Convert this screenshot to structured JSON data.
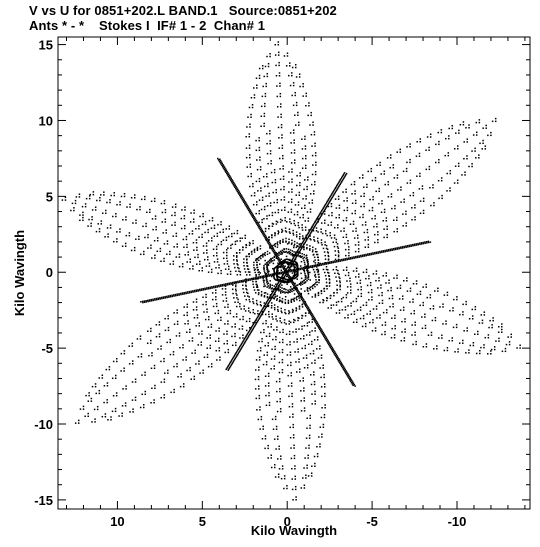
{
  "header": {
    "line1": "V vs U for 0851+202.L BAND.1   Source:0851+202",
    "line2": "Ants * - *    Stokes I  IF# 1 - 2  Chan# 1"
  },
  "chart_data": {
    "type": "scatter",
    "title": "V vs U for 0851+202.L BAND.1   Source:0851+202",
    "subtitle": "Ants * - *    Stokes I  IF# 1 - 2  Chan# 1",
    "xlabel": "Kilo Wavingth",
    "ylabel": "Kilo Wavingth",
    "xlim": [
      13.5,
      -14.3
    ],
    "ylim": [
      -15.6,
      15.5
    ],
    "x_inverted": true,
    "x_ticks": [
      10,
      5,
      0,
      -5,
      -10
    ],
    "x_tick_labels": [
      "10",
      "5",
      "0",
      "-5",
      "-10"
    ],
    "y_ticks": [
      15,
      10,
      5,
      0,
      -5,
      -10,
      -15
    ],
    "y_tick_labels": [
      "15",
      "10",
      "5",
      "0",
      "-5",
      "-10",
      "-15"
    ],
    "grid": false,
    "marker_color": "#000000",
    "description_of_pattern": "uv-coverage of a six-armed (Y-shaped, mirrored) array; dense spokes at angles ~60, 120, 180 deg with parallel track bands",
    "arm_endpoints": [
      {
        "u": 0.5,
        "v": 15.0
      },
      {
        "u": -12.5,
        "v": 10.0
      },
      {
        "u": -13.8,
        "v": -5.0
      },
      {
        "u": -0.5,
        "v": -15.0
      },
      {
        "u": 12.5,
        "v": -10.0
      },
      {
        "u": 13.0,
        "v": 5.0
      }
    ],
    "spokes": [
      {
        "u_end": 4.0,
        "v_end": 7.5
      },
      {
        "u_end": -8.5,
        "v_end": 2.0
      },
      {
        "u_end": 3.5,
        "v_end": -6.5
      }
    ]
  }
}
